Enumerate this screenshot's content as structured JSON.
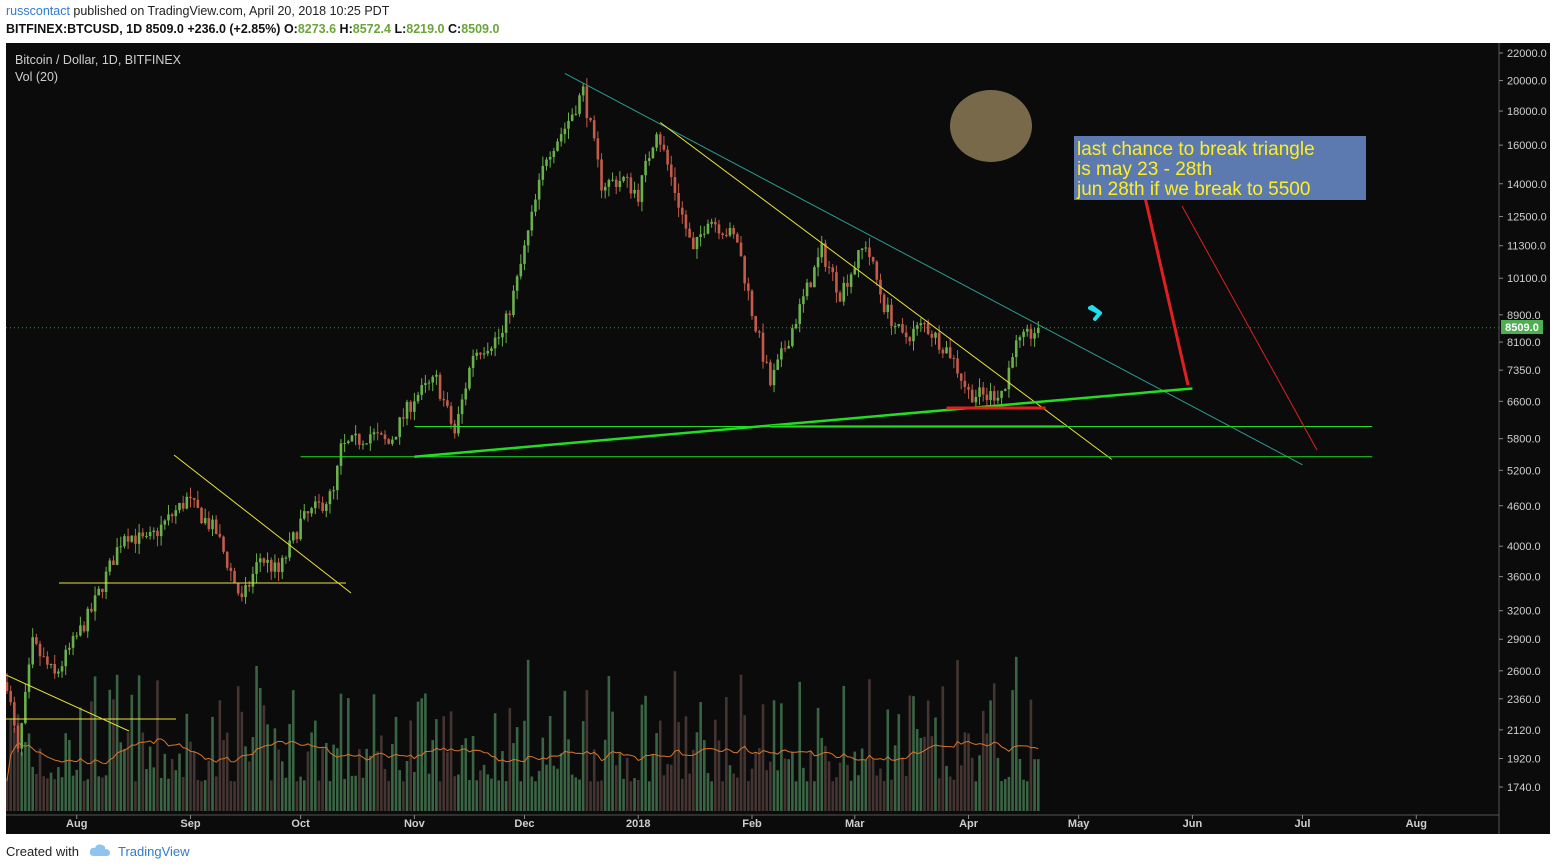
{
  "header": {
    "author": "russcontact",
    "published_text": "published on TradingView.com, April 20, 2018 10:25 PDT",
    "symbol": "BITFINEX:BTCUSD, 1D",
    "last": "8509.0",
    "change": "+236.0 (+2.85%)",
    "o_label": "O:",
    "o_value": "8273.6",
    "h_label": "H:",
    "h_value": "8572.4",
    "l_label": "L:",
    "l_value": "8219.0",
    "c_label": "C:",
    "c_value": "8509.0"
  },
  "legend": {
    "title": "Bitcoin / Dollar, 1D, BITFINEX",
    "volume": "Vol (20)"
  },
  "annotation": {
    "line1": "last chance to break triangle",
    "line2": "is may 23 - 28th",
    "line3": "jun 28th if we break to 5500"
  },
  "footer": {
    "created_with": "Created with",
    "brand": "TradingView"
  },
  "colors": {
    "background": "#0b0b0b",
    "up": "#6ab04c",
    "down": "#c25b4a",
    "trend_green": "#22dd22",
    "trend_yellow": "#e8e23a",
    "trend_teal": "#2a9d8f",
    "support_red": "#e02020",
    "annotation_bg": "#5c7ab0",
    "annotation_text": "#ffee22",
    "last_price_badge": "#4caf50",
    "volume_ma": "#d8752a"
  },
  "chart_data": {
    "type": "candlestick",
    "symbol": "BITFINEX:BTCUSD",
    "interval": "1D",
    "title": "Bitcoin / Dollar, 1D, BITFINEX",
    "last_price": 8509.0,
    "last_price_label": "8509.0",
    "y_scale": "log",
    "y_ticks": [
      22000,
      20000,
      18000,
      16000,
      14000,
      12500,
      11300,
      10100,
      8900,
      8100,
      7350,
      6600,
      5800,
      5200,
      4600,
      4000,
      3600,
      3200,
      2900,
      2600,
      2360,
      2120,
      1920,
      1740
    ],
    "y_tick_labels": [
      "22000.0",
      "20000.0",
      "18000.0",
      "16000.0",
      "14000.0",
      "12500.0",
      "11300.0",
      "10100.0",
      "8900.0",
      "8100.0",
      "7350.0",
      "6600.0",
      "5800.0",
      "5200.0",
      "4600.0",
      "4000.0",
      "3600.0",
      "3200.0",
      "2900.0",
      "2600.0",
      "2360.0",
      "2120.0",
      "1920.0",
      "1740.0"
    ],
    "x_labels": [
      "Aug",
      "Sep",
      "Oct",
      "Nov",
      "Dec",
      "2018",
      "Feb",
      "Mar",
      "Apr",
      "May",
      "Jun",
      "Jul",
      "Aug"
    ],
    "x_range": [
      "2017-07-13",
      "2018-08-26"
    ],
    "price_path": [
      [
        "2017-07-13",
        2500
      ],
      [
        "2017-07-16",
        1950
      ],
      [
        "2017-07-20",
        2850
      ],
      [
        "2017-07-26",
        2550
      ],
      [
        "2017-08-05",
        3200
      ],
      [
        "2017-08-14",
        4200
      ],
      [
        "2017-08-20",
        4050
      ],
      [
        "2017-08-31",
        4700
      ],
      [
        "2017-09-08",
        4200
      ],
      [
        "2017-09-15",
        3300
      ],
      [
        "2017-09-20",
        3850
      ],
      [
        "2017-09-25",
        3650
      ],
      [
        "2017-10-01",
        4350
      ],
      [
        "2017-10-10",
        4800
      ],
      [
        "2017-10-12",
        5600
      ],
      [
        "2017-10-20",
        5900
      ],
      [
        "2017-10-25",
        5700
      ],
      [
        "2017-11-01",
        6700
      ],
      [
        "2017-11-07",
        7100
      ],
      [
        "2017-11-12",
        5900
      ],
      [
        "2017-11-17",
        7800
      ],
      [
        "2017-11-25",
        8300
      ],
      [
        "2017-11-29",
        10000
      ],
      [
        "2017-12-07",
        15500
      ],
      [
        "2017-12-12",
        17000
      ],
      [
        "2017-12-17",
        19300
      ],
      [
        "2017-12-22",
        14000
      ],
      [
        "2017-12-28",
        14200
      ],
      [
        "2018-01-01",
        13500
      ],
      [
        "2018-01-06",
        17000
      ],
      [
        "2018-01-16",
        11000
      ],
      [
        "2018-01-20",
        12500
      ],
      [
        "2018-01-28",
        11500
      ],
      [
        "2018-02-01",
        9000
      ],
      [
        "2018-02-06",
        7000
      ],
      [
        "2018-02-12",
        8500
      ],
      [
        "2018-02-20",
        11100
      ],
      [
        "2018-02-25",
        9600
      ],
      [
        "2018-03-04",
        11400
      ],
      [
        "2018-03-09",
        9200
      ],
      [
        "2018-03-14",
        8200
      ],
      [
        "2018-03-20",
        8600
      ],
      [
        "2018-03-27",
        7800
      ],
      [
        "2018-04-01",
        6800
      ],
      [
        "2018-04-06",
        6700
      ],
      [
        "2018-04-11",
        6900
      ],
      [
        "2018-04-13",
        7900
      ],
      [
        "2018-04-20",
        8509
      ]
    ],
    "trendlines": [
      {
        "name": "descending-resistance",
        "color": "teal",
        "from": [
          "2017-12-12",
          20500
        ],
        "to": [
          "2018-07-01",
          5300
        ]
      },
      {
        "name": "descending-yellow",
        "color": "yellow",
        "from": [
          "2018-01-07",
          17300
        ],
        "to": [
          "2018-05-10",
          5400
        ]
      },
      {
        "name": "ascending-support",
        "color": "green",
        "from": [
          "2017-11-01",
          5450
        ],
        "to": [
          "2018-06-01",
          6900
        ]
      },
      {
        "name": "horizontal-support",
        "color": "red",
        "from": [
          "2018-02-06",
          6050
        ],
        "to": [
          "2018-04-27",
          6050
        ]
      },
      {
        "name": "horizontal-support-upper",
        "color": "red",
        "from": [
          "2018-03-26",
          6450
        ],
        "to": [
          "2018-04-22",
          6450
        ]
      },
      {
        "name": "level-6050",
        "color": "green",
        "from": [
          "2017-11-01",
          6050
        ],
        "to": [
          "2018-07-20",
          6050
        ]
      },
      {
        "name": "level-5450",
        "color": "green",
        "from": [
          "2017-10-01",
          5450
        ],
        "to": [
          "2018-07-20",
          5450
        ]
      }
    ],
    "volume": {
      "ma_period": 20,
      "axis_ticks_hidden": true
    }
  }
}
